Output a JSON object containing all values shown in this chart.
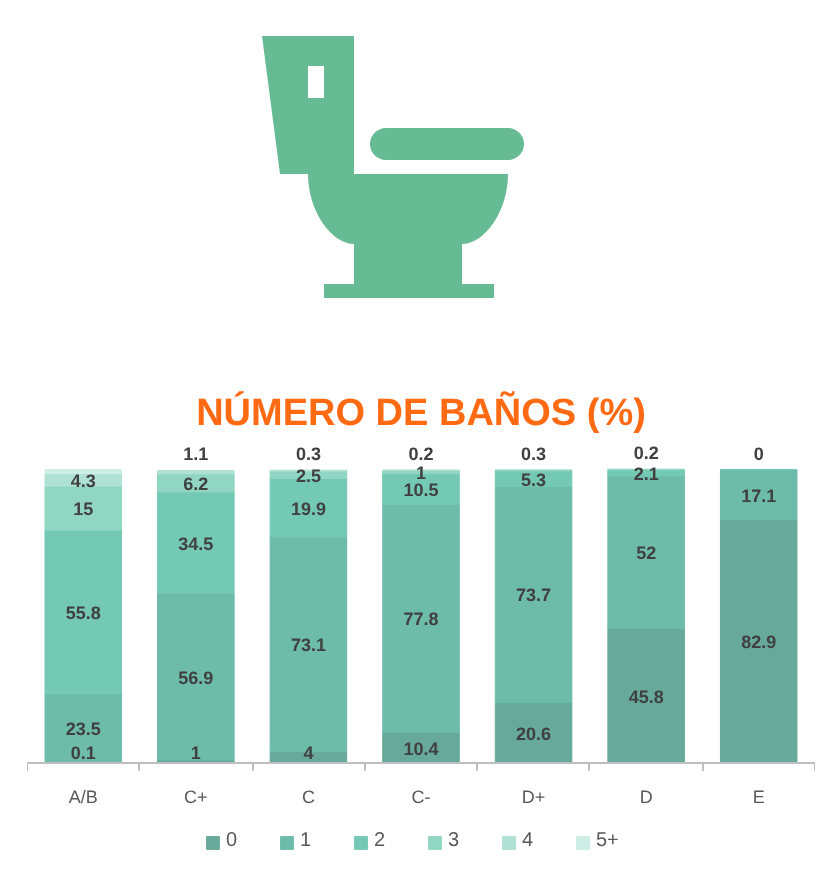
{
  "chart_data": {
    "type": "bar",
    "title": "NÚMERO DE BAÑOS (%)",
    "categories": [
      "A/B",
      "C+",
      "C",
      "C-",
      "D+",
      "D",
      "E"
    ],
    "stacked": true,
    "legend": "bottom",
    "tick_labels": "x",
    "series": [
      {
        "name": "0",
        "color": "#67aa9b",
        "values": [
          0.1,
          1,
          4,
          10.4,
          20.6,
          45.8,
          82.9
        ],
        "value_labels": [
          "0.1",
          "1",
          "4",
          "10.4",
          "20.6",
          "45.8",
          "82.9"
        ]
      },
      {
        "name": "1",
        "color": "#6dbba9",
        "values": [
          23.5,
          56.9,
          73.1,
          77.8,
          73.7,
          52,
          17.1
        ],
        "value_labels": [
          "23.5",
          "56.9",
          "73.1",
          "77.8",
          "73.7",
          "52",
          "17.1"
        ]
      },
      {
        "name": "2",
        "color": "#74c9b4",
        "values": [
          55.8,
          34.5,
          19.9,
          10.5,
          5.3,
          2.1,
          0
        ],
        "value_labels": [
          "55.8",
          "34.5",
          "19.9",
          "10.5",
          "5.3",
          "2.1",
          "0"
        ]
      },
      {
        "name": "3",
        "color": "#90d6c3",
        "values": [
          15,
          6.2,
          2.5,
          1,
          0.3,
          0.2,
          null
        ],
        "value_labels": [
          "15",
          "6.2",
          "2.5",
          "1",
          "0.3",
          "0.2",
          null
        ]
      },
      {
        "name": "4",
        "color": "#b0e2d4",
        "values": [
          4.3,
          1.1,
          0.3,
          0.2,
          null,
          null,
          null
        ],
        "value_labels": [
          "4.3",
          "1.1",
          "0.3",
          "0.2",
          null,
          null,
          null
        ]
      },
      {
        "name": "5+",
        "color": "#cdeee5",
        "values": [
          1.3,
          null,
          null,
          null,
          null,
          null,
          null
        ],
        "value_labels": [
          null,
          null,
          null,
          null,
          null,
          null,
          null
        ]
      }
    ]
  }
}
